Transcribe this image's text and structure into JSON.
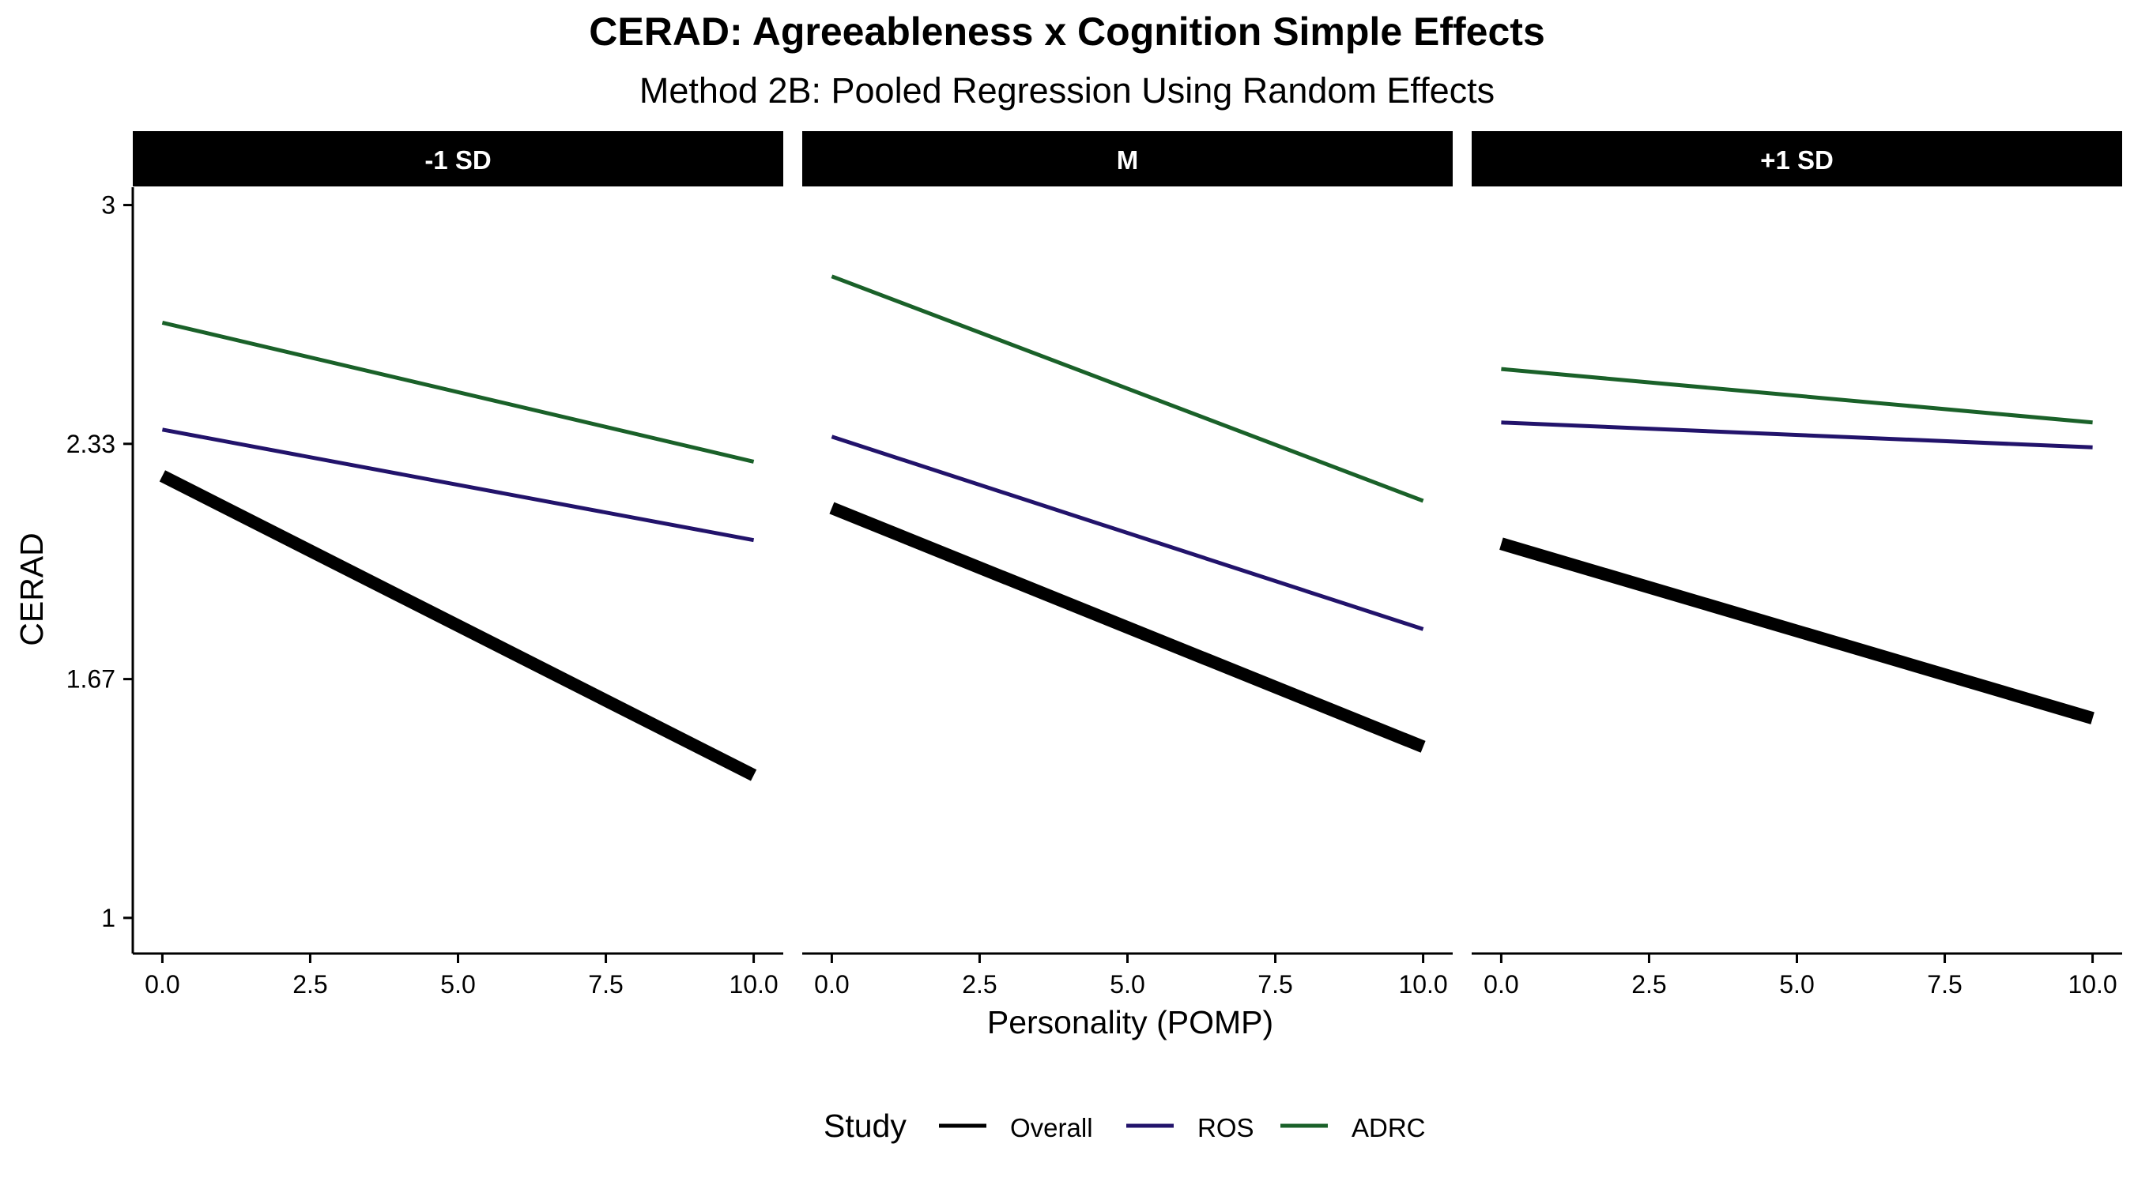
{
  "chart_data": {
    "type": "line",
    "title": "CERAD: Agreeableness x Cognition Simple Effects",
    "subtitle": "Method 2B: Pooled Regression Using Random Effects",
    "xlabel": "Personality (POMP)",
    "ylabel": "CERAD",
    "xlim": [
      -0.5,
      10.5
    ],
    "ylim": [
      0.9,
      3.05
    ],
    "x_ticks": [
      0,
      2.5,
      5,
      7.5,
      10
    ],
    "x_tick_labels": [
      "0.0",
      "2.5",
      "5.0",
      "7.5",
      "10.0"
    ],
    "y_ticks": [
      1,
      1.67,
      2.33,
      3
    ],
    "y_tick_labels": [
      "1",
      "1.67",
      "2.33",
      "3"
    ],
    "legend": {
      "title": "Study",
      "position": "bottom",
      "entries": [
        {
          "name": "Overall",
          "color": "#000000"
        },
        {
          "name": "ROS",
          "color": "#22136b"
        },
        {
          "name": "ADRC",
          "color": "#1a6129"
        }
      ]
    },
    "panels": [
      {
        "label": "-1 SD",
        "series": [
          {
            "name": "Overall",
            "x": [
              0,
              10
            ],
            "y": [
              2.24,
              1.4
            ]
          },
          {
            "name": "ROS",
            "x": [
              0,
              10
            ],
            "y": [
              2.37,
              2.06
            ]
          },
          {
            "name": "ADRC",
            "x": [
              0,
              10
            ],
            "y": [
              2.67,
              2.28
            ]
          }
        ]
      },
      {
        "label": "M",
        "series": [
          {
            "name": "Overall",
            "x": [
              0,
              10
            ],
            "y": [
              2.15,
              1.48
            ]
          },
          {
            "name": "ROS",
            "x": [
              0,
              10
            ],
            "y": [
              2.35,
              1.81
            ]
          },
          {
            "name": "ADRC",
            "x": [
              0,
              10
            ],
            "y": [
              2.8,
              2.17
            ]
          }
        ]
      },
      {
        "label": "+1 SD",
        "series": [
          {
            "name": "Overall",
            "x": [
              0,
              10
            ],
            "y": [
              2.05,
              1.56
            ]
          },
          {
            "name": "ROS",
            "x": [
              0,
              10
            ],
            "y": [
              2.39,
              2.32
            ]
          },
          {
            "name": "ADRC",
            "x": [
              0,
              10
            ],
            "y": [
              2.54,
              2.39
            ]
          }
        ]
      }
    ]
  }
}
